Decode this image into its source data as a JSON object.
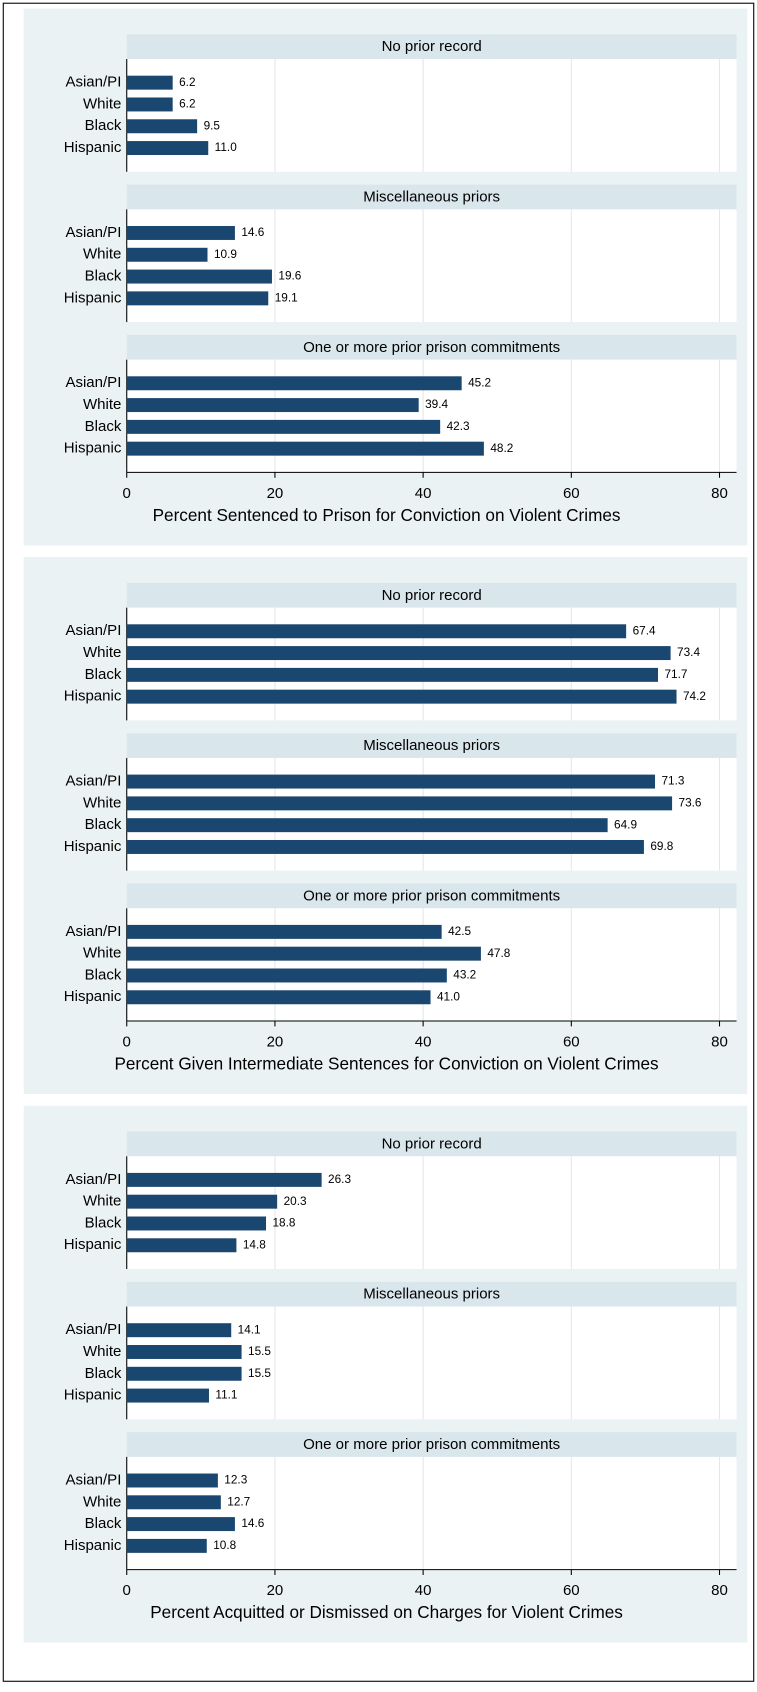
{
  "chart_data": [
    {
      "type": "bar",
      "orientation": "horizontal",
      "xlabel": "Percent Sentenced to Prison for Conviction on Violent Crimes",
      "categories": [
        "Asian/PI",
        "White",
        "Black",
        "Hispanic"
      ],
      "color": "#1a476f",
      "xlim": [
        0,
        82.3
      ],
      "xticks": [
        0,
        20,
        40,
        60,
        80
      ],
      "grid": true,
      "panels": [
        {
          "title": "No prior record",
          "values": [
            6.2,
            6.2,
            9.5,
            11.0
          ],
          "value_labels": [
            "6.2",
            "6.2",
            "9.5",
            "11.0"
          ]
        },
        {
          "title": "Miscellaneous priors",
          "values": [
            14.6,
            10.9,
            19.6,
            19.1
          ],
          "value_labels": [
            "14.6",
            "10.9",
            "19.6",
            "19.1"
          ]
        },
        {
          "title": "One or more prior prison commitments",
          "values": [
            45.2,
            39.4,
            42.3,
            48.2
          ],
          "value_labels": [
            "45.2",
            "39.4",
            "42.3",
            "48.2"
          ]
        }
      ]
    },
    {
      "type": "bar",
      "orientation": "horizontal",
      "xlabel": "Percent Given Intermediate Sentences for Conviction on Violent Crimes",
      "categories": [
        "Asian/PI",
        "White",
        "Black",
        "Hispanic"
      ],
      "color": "#1a476f",
      "xlim": [
        0,
        82.3
      ],
      "xticks": [
        0,
        20,
        40,
        60,
        80
      ],
      "grid": true,
      "panels": [
        {
          "title": "No prior record",
          "values": [
            67.4,
            73.4,
            71.7,
            74.2
          ],
          "value_labels": [
            "67.4",
            "73.4",
            "71.7",
            "74.2"
          ]
        },
        {
          "title": "Miscellaneous priors",
          "values": [
            71.3,
            73.6,
            64.9,
            69.8
          ],
          "value_labels": [
            "71.3",
            "73.6",
            "64.9",
            "69.8"
          ]
        },
        {
          "title": "One or more prior prison commitments",
          "values": [
            42.5,
            47.8,
            43.2,
            41.0
          ],
          "value_labels": [
            "42.5",
            "47.8",
            "43.2",
            "41.0"
          ]
        }
      ]
    },
    {
      "type": "bar",
      "orientation": "horizontal",
      "xlabel": "Percent Acquitted or Dismissed on Charges for Violent Crimes",
      "categories": [
        "Asian/PI",
        "White",
        "Black",
        "Hispanic"
      ],
      "color": "#1a476f",
      "xlim": [
        0,
        82.3
      ],
      "xticks": [
        0,
        20,
        40,
        60,
        80
      ],
      "grid": true,
      "panels": [
        {
          "title": "No prior record",
          "values": [
            26.3,
            20.3,
            18.8,
            14.8
          ],
          "value_labels": [
            "26.3",
            "20.3",
            "18.8",
            "14.8"
          ]
        },
        {
          "title": "Miscellaneous priors",
          "values": [
            14.1,
            15.5,
            15.5,
            11.1
          ],
          "value_labels": [
            "14.1",
            "15.5",
            "15.5",
            "11.1"
          ]
        },
        {
          "title": "One or more prior prison commitments",
          "values": [
            12.3,
            12.7,
            14.6,
            10.8
          ],
          "value_labels": [
            "12.3",
            "12.7",
            "14.6",
            "10.8"
          ]
        }
      ]
    }
  ]
}
